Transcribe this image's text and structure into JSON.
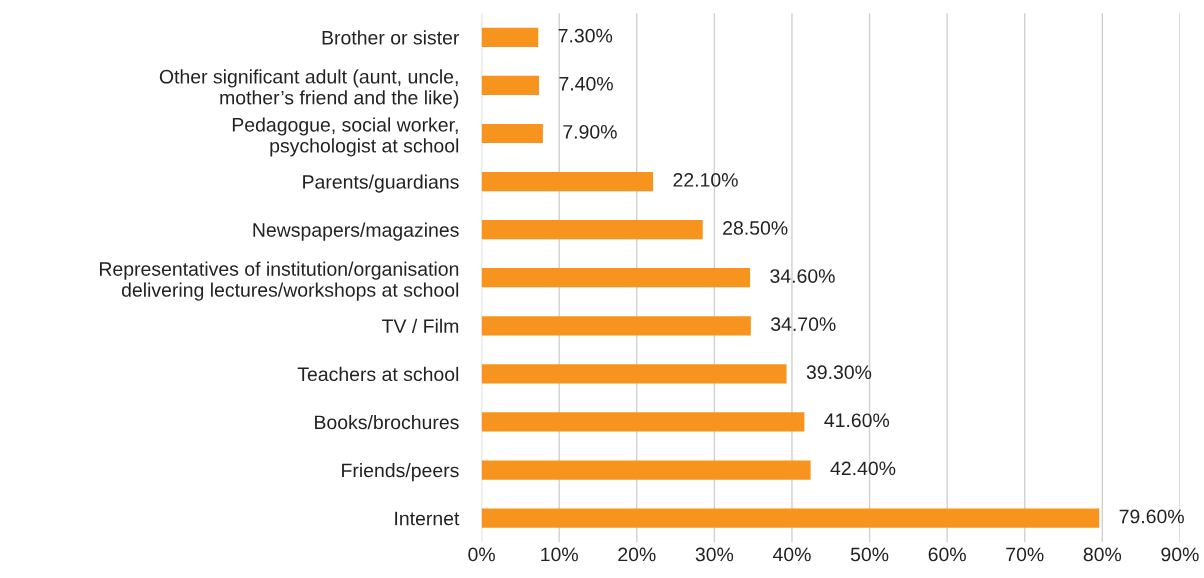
{
  "chart_data": {
    "type": "bar",
    "orientation": "horizontal",
    "categories": [
      "Brother or sister",
      "Other significant adult (aunt, uncle,\nmother’s friend and the like)",
      "Pedagogue, social worker,\npsychologist at school",
      "Parents/guardians",
      "Newspapers/magazines",
      "Representatives of institution/organisation\ndelivering lectures/workshops at school",
      "TV / Film",
      "Teachers at school",
      "Books/brochures",
      "Friends/peers",
      "Internet"
    ],
    "values": [
      7.3,
      7.4,
      7.9,
      22.1,
      28.5,
      34.6,
      34.7,
      39.3,
      41.6,
      42.4,
      79.6
    ],
    "value_labels": [
      "7.30%",
      "7.40%",
      "7.90%",
      "22.10%",
      "28.50%",
      "34.60%",
      "34.70%",
      "39.30%",
      "41.60%",
      "42.40%",
      "79.60%"
    ],
    "color": "#f7941d",
    "xlim": [
      0,
      90
    ],
    "xticks": [
      {
        "value": 0,
        "label": "0%"
      },
      {
        "value": 10,
        "label": "10%"
      },
      {
        "value": 20,
        "label": "20%"
      },
      {
        "value": 30,
        "label": "30%"
      },
      {
        "value": 40,
        "label": "40%"
      },
      {
        "value": 50,
        "label": "50%"
      },
      {
        "value": 60,
        "label": "60%"
      },
      {
        "value": 70,
        "label": "70%"
      },
      {
        "value": 80,
        "label": "80%"
      },
      {
        "value": 90,
        "label": "90%"
      }
    ],
    "grid": "x"
  }
}
